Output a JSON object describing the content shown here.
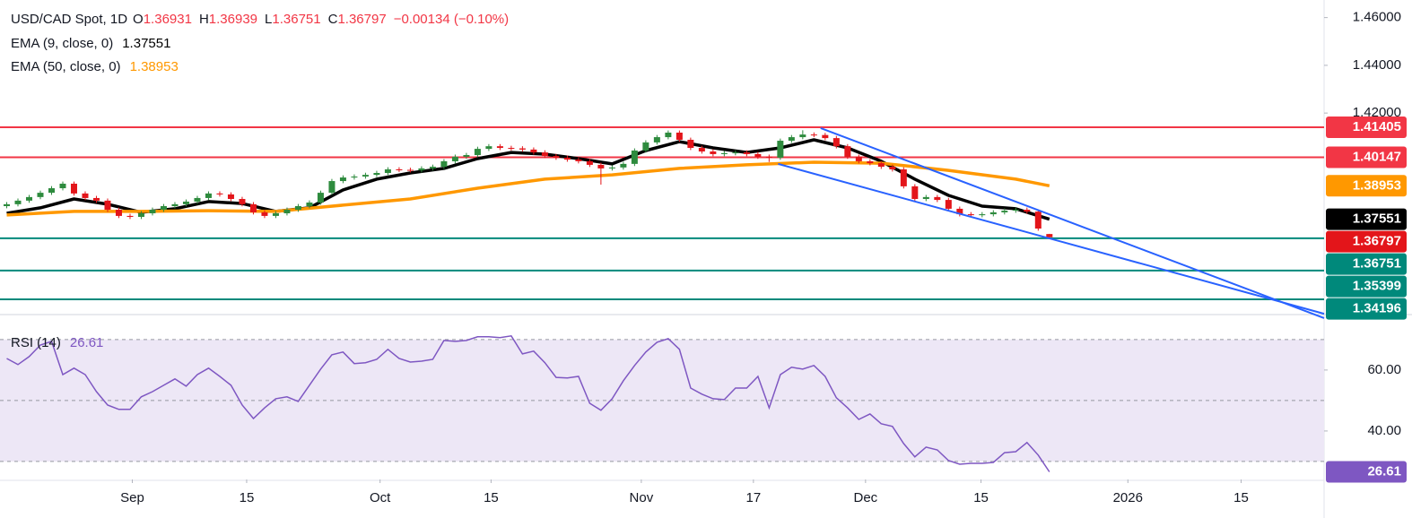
{
  "header": {
    "symbol": "USD/CAD Spot, 1D",
    "ohlc_labels": [
      "O",
      "H",
      "L",
      "C"
    ],
    "change": "−0.00134 (−0.10%)"
  },
  "chart_data": [
    {
      "type": "candlestick",
      "xlim": [
        -0.6,
        117.5
      ],
      "xticks": [
        {
          "value": 11.2,
          "label": "Sep"
        },
        {
          "value": 21.4,
          "label": "15"
        },
        {
          "value": 33.3,
          "label": "Oct"
        },
        {
          "value": 43.2,
          "label": "15"
        },
        {
          "value": 56.6,
          "label": "Nov"
        },
        {
          "value": 66.6,
          "label": "17"
        },
        {
          "value": 76.6,
          "label": "Dec"
        },
        {
          "value": 86.9,
          "label": "15"
        },
        {
          "value": 100,
          "label": "2026"
        },
        {
          "value": 110.1,
          "label": "15"
        }
      ],
      "ylim": [
        1.33594,
        1.46737
      ],
      "yticks": [
        {
          "value": 1.46,
          "label": "1.46000"
        },
        {
          "value": 1.44,
          "label": "1.44000"
        },
        {
          "value": 1.42,
          "label": "1.42000"
        }
      ],
      "up_color": "#2e8b3e",
      "down_color": "#e3151a",
      "x": [
        0,
        1,
        2,
        3,
        4,
        5,
        6,
        7,
        8,
        9,
        10,
        11,
        12,
        13,
        14,
        15,
        16,
        17,
        18,
        19,
        20,
        21,
        22,
        23,
        24,
        25,
        26,
        27,
        28,
        29,
        30,
        31,
        32,
        33,
        34,
        35,
        36,
        37,
        38,
        39,
        40,
        41,
        42,
        43,
        44,
        45,
        46,
        47,
        48,
        49,
        50,
        51,
        52,
        53,
        54,
        55,
        56,
        57,
        58,
        59,
        60,
        61,
        62,
        63,
        64,
        65,
        66,
        67,
        68,
        69,
        70,
        71,
        72,
        73,
        74,
        75,
        76,
        77,
        78,
        79,
        80,
        81,
        82,
        83,
        84,
        85,
        86,
        87,
        88,
        89,
        90,
        91,
        92,
        93
      ],
      "candles": [
        [
          1.381,
          1.3827,
          1.3801,
          1.3818
        ],
        [
          1.3818,
          1.3842,
          1.3809,
          1.3833
        ],
        [
          1.3833,
          1.3857,
          1.3824,
          1.3848
        ],
        [
          1.3848,
          1.3875,
          1.3839,
          1.3866
        ],
        [
          1.3866,
          1.3894,
          1.3857,
          1.3885
        ],
        [
          1.3885,
          1.3913,
          1.3876,
          1.3904
        ],
        [
          1.3904,
          1.3913,
          1.3854,
          1.3863
        ],
        [
          1.3863,
          1.3872,
          1.3835,
          1.3844
        ],
        [
          1.3844,
          1.3853,
          1.3824,
          1.3833
        ],
        [
          1.3833,
          1.3842,
          1.3786,
          1.3795
        ],
        [
          1.3795,
          1.3804,
          1.376,
          1.3769
        ],
        [
          1.3769,
          1.3778,
          1.3756,
          1.3765
        ],
        [
          1.3765,
          1.3789,
          1.3756,
          1.378
        ],
        [
          1.378,
          1.3804,
          1.3771,
          1.3795
        ],
        [
          1.3795,
          1.3819,
          1.3786,
          1.381
        ],
        [
          1.381,
          1.3827,
          1.3801,
          1.3818
        ],
        [
          1.3818,
          1.3838,
          1.3809,
          1.3829
        ],
        [
          1.3829,
          1.3853,
          1.382,
          1.3844
        ],
        [
          1.3844,
          1.3872,
          1.3835,
          1.3863
        ],
        [
          1.3863,
          1.3872,
          1.385,
          1.3859
        ],
        [
          1.3859,
          1.3868,
          1.3831,
          1.384
        ],
        [
          1.384,
          1.3849,
          1.3809,
          1.3818
        ],
        [
          1.3818,
          1.3827,
          1.3775,
          1.3784
        ],
        [
          1.3784,
          1.3793,
          1.376,
          1.3769
        ],
        [
          1.3769,
          1.3789,
          1.376,
          1.378
        ],
        [
          1.378,
          1.3804,
          1.3771,
          1.3795
        ],
        [
          1.3795,
          1.3819,
          1.3786,
          1.381
        ],
        [
          1.381,
          1.3834,
          1.3801,
          1.3825
        ],
        [
          1.3825,
          1.3875,
          1.3816,
          1.3866
        ],
        [
          1.3866,
          1.3924,
          1.3857,
          1.3915
        ],
        [
          1.3915,
          1.3939,
          1.3906,
          1.393
        ],
        [
          1.393,
          1.3943,
          1.3921,
          1.3934
        ],
        [
          1.3934,
          1.395,
          1.3925,
          1.3941
        ],
        [
          1.3941,
          1.3958,
          1.3932,
          1.3949
        ],
        [
          1.3949,
          1.3973,
          1.394,
          1.3964
        ],
        [
          1.3964,
          1.3973,
          1.3953,
          1.3962
        ],
        [
          1.3962,
          1.3971,
          1.3951,
          1.396
        ],
        [
          1.396,
          1.3977,
          1.3951,
          1.3968
        ],
        [
          1.3968,
          1.3984,
          1.3959,
          1.3975
        ],
        [
          1.3975,
          1.4007,
          1.3966,
          1.3998
        ],
        [
          1.3998,
          1.4026,
          1.3989,
          1.4017
        ],
        [
          1.4017,
          1.4033,
          1.4008,
          1.4024
        ],
        [
          1.4024,
          1.4059,
          1.4015,
          1.405
        ],
        [
          1.405,
          1.407,
          1.4041,
          1.4061
        ],
        [
          1.4061,
          1.407,
          1.4045,
          1.4054
        ],
        [
          1.4054,
          1.4063,
          1.4043,
          1.4052
        ],
        [
          1.4052,
          1.4061,
          1.4038,
          1.4047
        ],
        [
          1.4047,
          1.4056,
          1.4026,
          1.4035
        ],
        [
          1.4035,
          1.4044,
          1.4011,
          1.402
        ],
        [
          1.402,
          1.4029,
          1.4004,
          1.4013
        ],
        [
          1.4013,
          1.4022,
          1.3996,
          1.4005
        ],
        [
          1.4005,
          1.4014,
          1.3989,
          1.3998
        ],
        [
          1.3998,
          1.4007,
          1.3974,
          1.3983
        ],
        [
          1.3983,
          1.3992,
          1.39,
          1.3968
        ],
        [
          1.3968,
          1.3981,
          1.3959,
          1.3972
        ],
        [
          1.3972,
          1.3996,
          1.3963,
          1.3987
        ],
        [
          1.3987,
          1.4052,
          1.3978,
          1.4043
        ],
        [
          1.4043,
          1.4086,
          1.4034,
          1.4077
        ],
        [
          1.4077,
          1.4108,
          1.4068,
          1.4099
        ],
        [
          1.4099,
          1.4127,
          1.409,
          1.4118
        ],
        [
          1.4118,
          1.4127,
          1.4079,
          1.4088
        ],
        [
          1.4088,
          1.4097,
          1.4045,
          1.4054
        ],
        [
          1.4054,
          1.4063,
          1.403,
          1.4039
        ],
        [
          1.4039,
          1.4048,
          1.4019,
          1.4028
        ],
        [
          1.4028,
          1.4041,
          1.4019,
          1.4032
        ],
        [
          1.4032,
          1.4044,
          1.4023,
          1.4035
        ],
        [
          1.4035,
          1.4044,
          1.4019,
          1.4028
        ],
        [
          1.4028,
          1.4037,
          1.4008,
          1.4017
        ],
        [
          1.4017,
          1.4026,
          1.3995,
          1.4013
        ],
        [
          1.4013,
          1.4093,
          1.4004,
          1.4084
        ],
        [
          1.4084,
          1.4108,
          1.4075,
          1.4099
        ],
        [
          1.4099,
          1.4128,
          1.409,
          1.411
        ],
        [
          1.411,
          1.4119,
          1.4099,
          1.4108
        ],
        [
          1.4108,
          1.4117,
          1.4086,
          1.4095
        ],
        [
          1.4095,
          1.4104,
          1.4052,
          1.4061
        ],
        [
          1.4061,
          1.407,
          1.4008,
          1.4017
        ],
        [
          1.4017,
          1.4026,
          1.3989,
          1.3998
        ],
        [
          1.3998,
          1.4007,
          1.3981,
          1.399
        ],
        [
          1.399,
          1.3999,
          1.3966,
          1.3975
        ],
        [
          1.3975,
          1.3984,
          1.3955,
          1.3964
        ],
        [
          1.3964,
          1.3973,
          1.3884,
          1.3893
        ],
        [
          1.3893,
          1.3902,
          1.3831,
          1.384
        ],
        [
          1.384,
          1.3857,
          1.3831,
          1.3848
        ],
        [
          1.3848,
          1.3857,
          1.3827,
          1.3836
        ],
        [
          1.3836,
          1.3845,
          1.379,
          1.3799
        ],
        [
          1.3799,
          1.3808,
          1.3767,
          1.3776
        ],
        [
          1.3776,
          1.3785,
          1.3763,
          1.3772
        ],
        [
          1.3772,
          1.3785,
          1.3763,
          1.3776
        ],
        [
          1.3776,
          1.3793,
          1.3767,
          1.3784
        ],
        [
          1.3784,
          1.38,
          1.3775,
          1.3791
        ],
        [
          1.3791,
          1.3804,
          1.3782,
          1.3795
        ],
        [
          1.3795,
          1.3804,
          1.3778,
          1.3787
        ],
        [
          1.3787,
          1.3796,
          1.3707,
          1.3716
        ],
        [
          1.36931,
          1.36939,
          1.36751,
          1.36797
        ]
      ],
      "series": [
        {
          "name": "EMA (9, close, 0)",
          "color": "#000000",
          "x": [
            0,
            3,
            6,
            9,
            12,
            15,
            18,
            21,
            24,
            27,
            30,
            33,
            36,
            39,
            42,
            45,
            48,
            51,
            54,
            57,
            60,
            63,
            66,
            69,
            72,
            75,
            78,
            81,
            84,
            87,
            90,
            93
          ],
          "values": [
            1.378,
            1.3803,
            1.384,
            1.3818,
            1.3784,
            1.3799,
            1.3829,
            1.3821,
            1.3788,
            1.3803,
            1.3878,
            1.3923,
            1.3949,
            1.3968,
            1.4009,
            1.4035,
            1.4028,
            1.4009,
            1.3987,
            1.4043,
            1.408,
            1.4054,
            1.4035,
            1.4054,
            1.4088,
            1.4054,
            1.3998,
            1.3923,
            1.3855,
            1.381,
            1.3799,
            1.37551
          ]
        },
        {
          "name": "EMA (50, close, 0)",
          "color": "#ff9800",
          "x": [
            0,
            6,
            12,
            18,
            24,
            30,
            36,
            42,
            48,
            54,
            60,
            66,
            72,
            78,
            84,
            90,
            93
          ],
          "values": [
            1.3773,
            1.3788,
            1.3788,
            1.3791,
            1.3788,
            1.3814,
            1.384,
            1.3885,
            1.3923,
            1.3941,
            1.3968,
            1.3983,
            1.3994,
            1.399,
            1.396,
            1.3923,
            1.38953
          ]
        }
      ],
      "levels": [
        {
          "value": 1.41405,
          "color": "#f23645"
        },
        {
          "value": 1.40147,
          "color": "#f23645"
        },
        {
          "value": 1.36751,
          "color": "#00897b"
        },
        {
          "value": 1.35399,
          "color": "#00897b"
        },
        {
          "value": 1.34196,
          "color": "#00897b"
        }
      ],
      "trendlines": [
        {
          "color": "#2962ff",
          "x": [
            72.6,
            117.5
          ],
          "values": [
            1.4137,
            1.3341
          ]
        },
        {
          "color": "#2962ff",
          "x": [
            68.8,
            117.5
          ],
          "values": [
            1.3987,
            1.3359
          ]
        }
      ]
    },
    {
      "type": "line",
      "name": "RSI (14)",
      "color": "#7e57c2",
      "band_color": "#ede7f6",
      "ylim": [
        24.1,
        77.9
      ],
      "yticks": [
        {
          "value": 60,
          "label": "60.00"
        },
        {
          "value": 40,
          "label": "40.00"
        }
      ],
      "levels": [
        70,
        50,
        30
      ],
      "values": [
        63.8,
        61.8,
        64.4,
        68.2,
        69.4,
        58.5,
        60.6,
        58.5,
        52.9,
        48.5,
        47.1,
        47.1,
        51.2,
        52.9,
        55.0,
        57.1,
        54.7,
        58.5,
        60.6,
        57.9,
        55.0,
        48.5,
        44.1,
        47.6,
        50.6,
        51.2,
        49.7,
        55.0,
        60.3,
        65.0,
        65.9,
        62.1,
        62.4,
        63.5,
        66.8,
        63.8,
        62.6,
        62.9,
        63.5,
        69.7,
        69.4,
        69.7,
        70.9,
        70.9,
        70.6,
        71.2,
        65.3,
        66.2,
        62.4,
        57.6,
        57.4,
        57.9,
        49.1,
        46.8,
        50.6,
        56.5,
        61.5,
        65.9,
        69.1,
        70.3,
        66.8,
        54.1,
        52.1,
        50.6,
        50.3,
        54.1,
        54.1,
        57.9,
        47.6,
        58.5,
        60.9,
        60.3,
        61.5,
        57.9,
        50.9,
        47.6,
        43.8,
        45.6,
        42.4,
        41.5,
        35.9,
        31.5,
        34.7,
        33.8,
        30.3,
        29.1,
        29.4,
        29.4,
        29.7,
        32.9,
        33.2,
        36.2,
        32.1,
        26.61
      ]
    }
  ]
}
